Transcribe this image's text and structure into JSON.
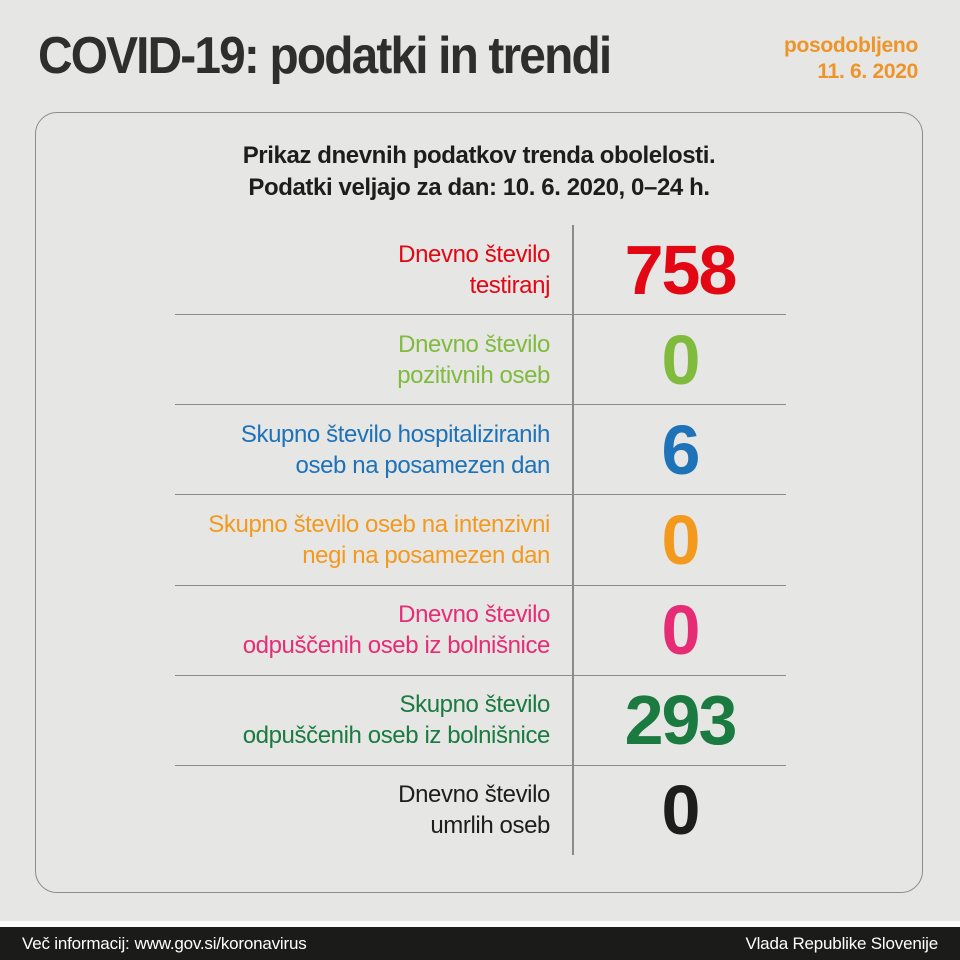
{
  "page": {
    "title": "COVID-19: podatki in trendi",
    "updated_label": "posodobljeno",
    "updated_date": "11. 6. 2020"
  },
  "card": {
    "subtitle_line1": "Prikaz dnevnih podatkov trenda obolelosti.",
    "subtitle_line2": "Podatki veljajo za dan: 10. 6. 2020, 0–24 h.",
    "rows": [
      {
        "label_line1": "Dnevno število",
        "label_line2": "testiranj",
        "value": "758",
        "color": "#e30613"
      },
      {
        "label_line1": "Dnevno število",
        "label_line2": "pozitivnih oseb",
        "value": "0",
        "color": "#80bb3e"
      },
      {
        "label_line1": "Skupno število hospitaliziranih",
        "label_line2": "oseb na posamezen dan",
        "value": "6",
        "color": "#1d72b8"
      },
      {
        "label_line1": "Skupno število oseb na intenzivni",
        "label_line2": "negi na posamezen dan",
        "value": "0",
        "color": "#f39a1e"
      },
      {
        "label_line1": "Dnevno število",
        "label_line2": "odpuščenih oseb iz bolnišnice",
        "value": "0",
        "color": "#e72c76"
      },
      {
        "label_line1": "Skupno število",
        "label_line2": "odpuščenih oseb iz bolnišnice",
        "value": "293",
        "color": "#1a7a40"
      },
      {
        "label_line1": "Dnevno število",
        "label_line2": "umrlih oseb",
        "value": "0",
        "color": "#1d1d1b"
      }
    ]
  },
  "footer": {
    "info_label": "Več informacij:",
    "url": "www.gov.si/koronavirus",
    "org": "Vlada Republike Slovenije"
  },
  "colors": {
    "background": "#e6e6e5",
    "card_border": "#8c8c8a",
    "divider": "#8b8b89",
    "accent_orange": "#ee9428",
    "footer_bg": "#1b1b1a",
    "title_text": "#2e2e2d",
    "subtitle_text": "#1d1d1b"
  },
  "chart_data": {
    "type": "table",
    "title": "COVID-19: podatki in trendi",
    "subtitle": "Prikaz dnevnih podatkov trenda obolelosti. Podatki veljajo za dan: 10. 6. 2020, 0–24 h.",
    "updated": "posodobljeno 11. 6. 2020",
    "categories": [
      "Dnevno število testiranj",
      "Dnevno število pozitivnih oseb",
      "Skupno število hospitaliziranih oseb na posamezen dan",
      "Skupno število oseb na intenzivni negi na posamezen dan",
      "Dnevno število odpuščenih oseb iz bolnišnice",
      "Skupno število odpuščenih oseb iz bolnišnice",
      "Dnevno število umrlih oseb"
    ],
    "values": [
      758,
      0,
      6,
      0,
      0,
      293,
      0
    ],
    "series_colors": [
      "#e30613",
      "#80bb3e",
      "#1d72b8",
      "#f39a1e",
      "#e72c76",
      "#1a7a40",
      "#1d1d1b"
    ],
    "legend_position": "none",
    "grid": "row-separators"
  }
}
